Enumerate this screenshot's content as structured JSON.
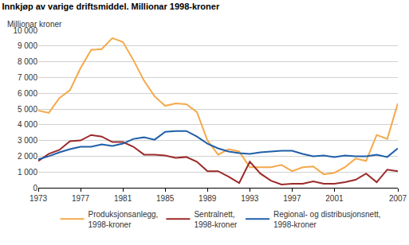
{
  "chart_data": {
    "type": "line",
    "title": "Innkjøp av varige driftsmiddel. Millionar 1998-kroner",
    "ylabel": "Millionar kroner",
    "x": [
      1973,
      1974,
      1975,
      1976,
      1977,
      1978,
      1979,
      1980,
      1981,
      1982,
      1983,
      1984,
      1985,
      1986,
      1987,
      1988,
      1989,
      1990,
      1991,
      1992,
      1993,
      1994,
      1995,
      1996,
      1997,
      1998,
      1999,
      2000,
      2001,
      2002,
      2003,
      2004,
      2005,
      2006,
      2007
    ],
    "series": [
      {
        "name": "Produksjonsanlegg, 1998-kroner",
        "color": "#f5a94b",
        "values": [
          4900,
          4750,
          5700,
          6200,
          7600,
          8750,
          8800,
          9500,
          9250,
          8100,
          6800,
          5800,
          5200,
          5350,
          5300,
          4800,
          3000,
          2100,
          2450,
          2300,
          1300,
          1300,
          1300,
          1450,
          1050,
          1300,
          1350,
          850,
          950,
          1300,
          1850,
          1700,
          3350,
          3100,
          5350
        ]
      },
      {
        "name": "Sentralnett, 1998-kroner",
        "color": "#9b2a2a",
        "values": [
          1700,
          2150,
          2400,
          2950,
          3000,
          3350,
          3250,
          2900,
          2900,
          2600,
          2100,
          2100,
          2050,
          1900,
          1950,
          1650,
          1050,
          1050,
          700,
          300,
          1650,
          900,
          450,
          200,
          250,
          250,
          400,
          250,
          250,
          350,
          500,
          900,
          350,
          1150,
          1050
        ]
      },
      {
        "name": "Regional- og distribusjonsnett, 1998-kroner",
        "color": "#1f5fa8",
        "values": [
          1800,
          2000,
          2250,
          2450,
          2600,
          2600,
          2750,
          2650,
          2800,
          3100,
          3200,
          3050,
          3550,
          3600,
          3600,
          3250,
          2800,
          2500,
          2300,
          2200,
          2150,
          2250,
          2300,
          2350,
          2350,
          2150,
          2000,
          2050,
          1950,
          2050,
          2000,
          2000,
          2100,
          1950,
          2500
        ]
      }
    ],
    "xlim": [
      1973,
      2007
    ],
    "xticks": [
      1973,
      1977,
      1981,
      1985,
      1989,
      1993,
      1997,
      2001,
      2007
    ],
    "ylim": [
      0,
      10000
    ],
    "yticks": [
      0,
      {
        "value": 1000,
        "label": "1 000"
      },
      {
        "value": 2000,
        "label": "2 000"
      },
      {
        "value": 3000,
        "label": "3 000"
      },
      {
        "value": 4000,
        "label": "4 000"
      },
      {
        "value": 5000,
        "label": "5 000"
      },
      {
        "value": 6000,
        "label": "6 000"
      },
      {
        "value": 7000,
        "label": "7 000"
      },
      {
        "value": 8000,
        "label": "8 000"
      },
      {
        "value": 9000,
        "label": "9 000"
      },
      {
        "value": 10000,
        "label": "10 000"
      }
    ],
    "grid": true,
    "legend": "bottom"
  }
}
